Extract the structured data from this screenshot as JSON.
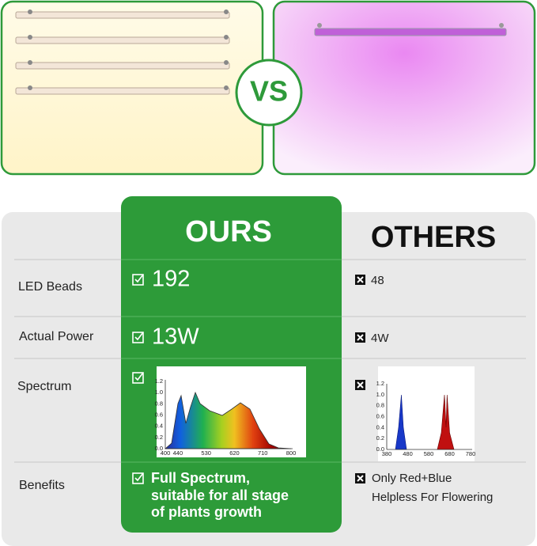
{
  "header": {
    "vs": "VS"
  },
  "table": {
    "columns": [
      "OURS",
      "OTHERS"
    ],
    "rows": [
      {
        "label": "LED Beads",
        "ours": "192",
        "others": "48"
      },
      {
        "label": "Actual Power",
        "ours": "13W",
        "others": "4W"
      },
      {
        "label": "Spectrum"
      },
      {
        "label": "Benefits",
        "ours": [
          "Full Spectrum,",
          "suitable for all stage",
          "of plants growth"
        ],
        "others": [
          "Only Red+Blue",
          "Helpless For Flowering"
        ]
      }
    ],
    "spectrum_ours": {
      "yticks": [
        "1.2",
        "1.0",
        "0.8",
        "0.6",
        "0.4",
        "0.2",
        "0.0"
      ],
      "xticks": [
        "400",
        "440",
        "530",
        "620",
        "710",
        "800"
      ]
    },
    "spectrum_others": {
      "yticks": [
        "1.2",
        "1.0",
        "0.8",
        "0.6",
        "0.4",
        "0.2",
        "0.0"
      ],
      "xticks": [
        "380",
        "480",
        "580",
        "680",
        "780"
      ]
    }
  }
}
